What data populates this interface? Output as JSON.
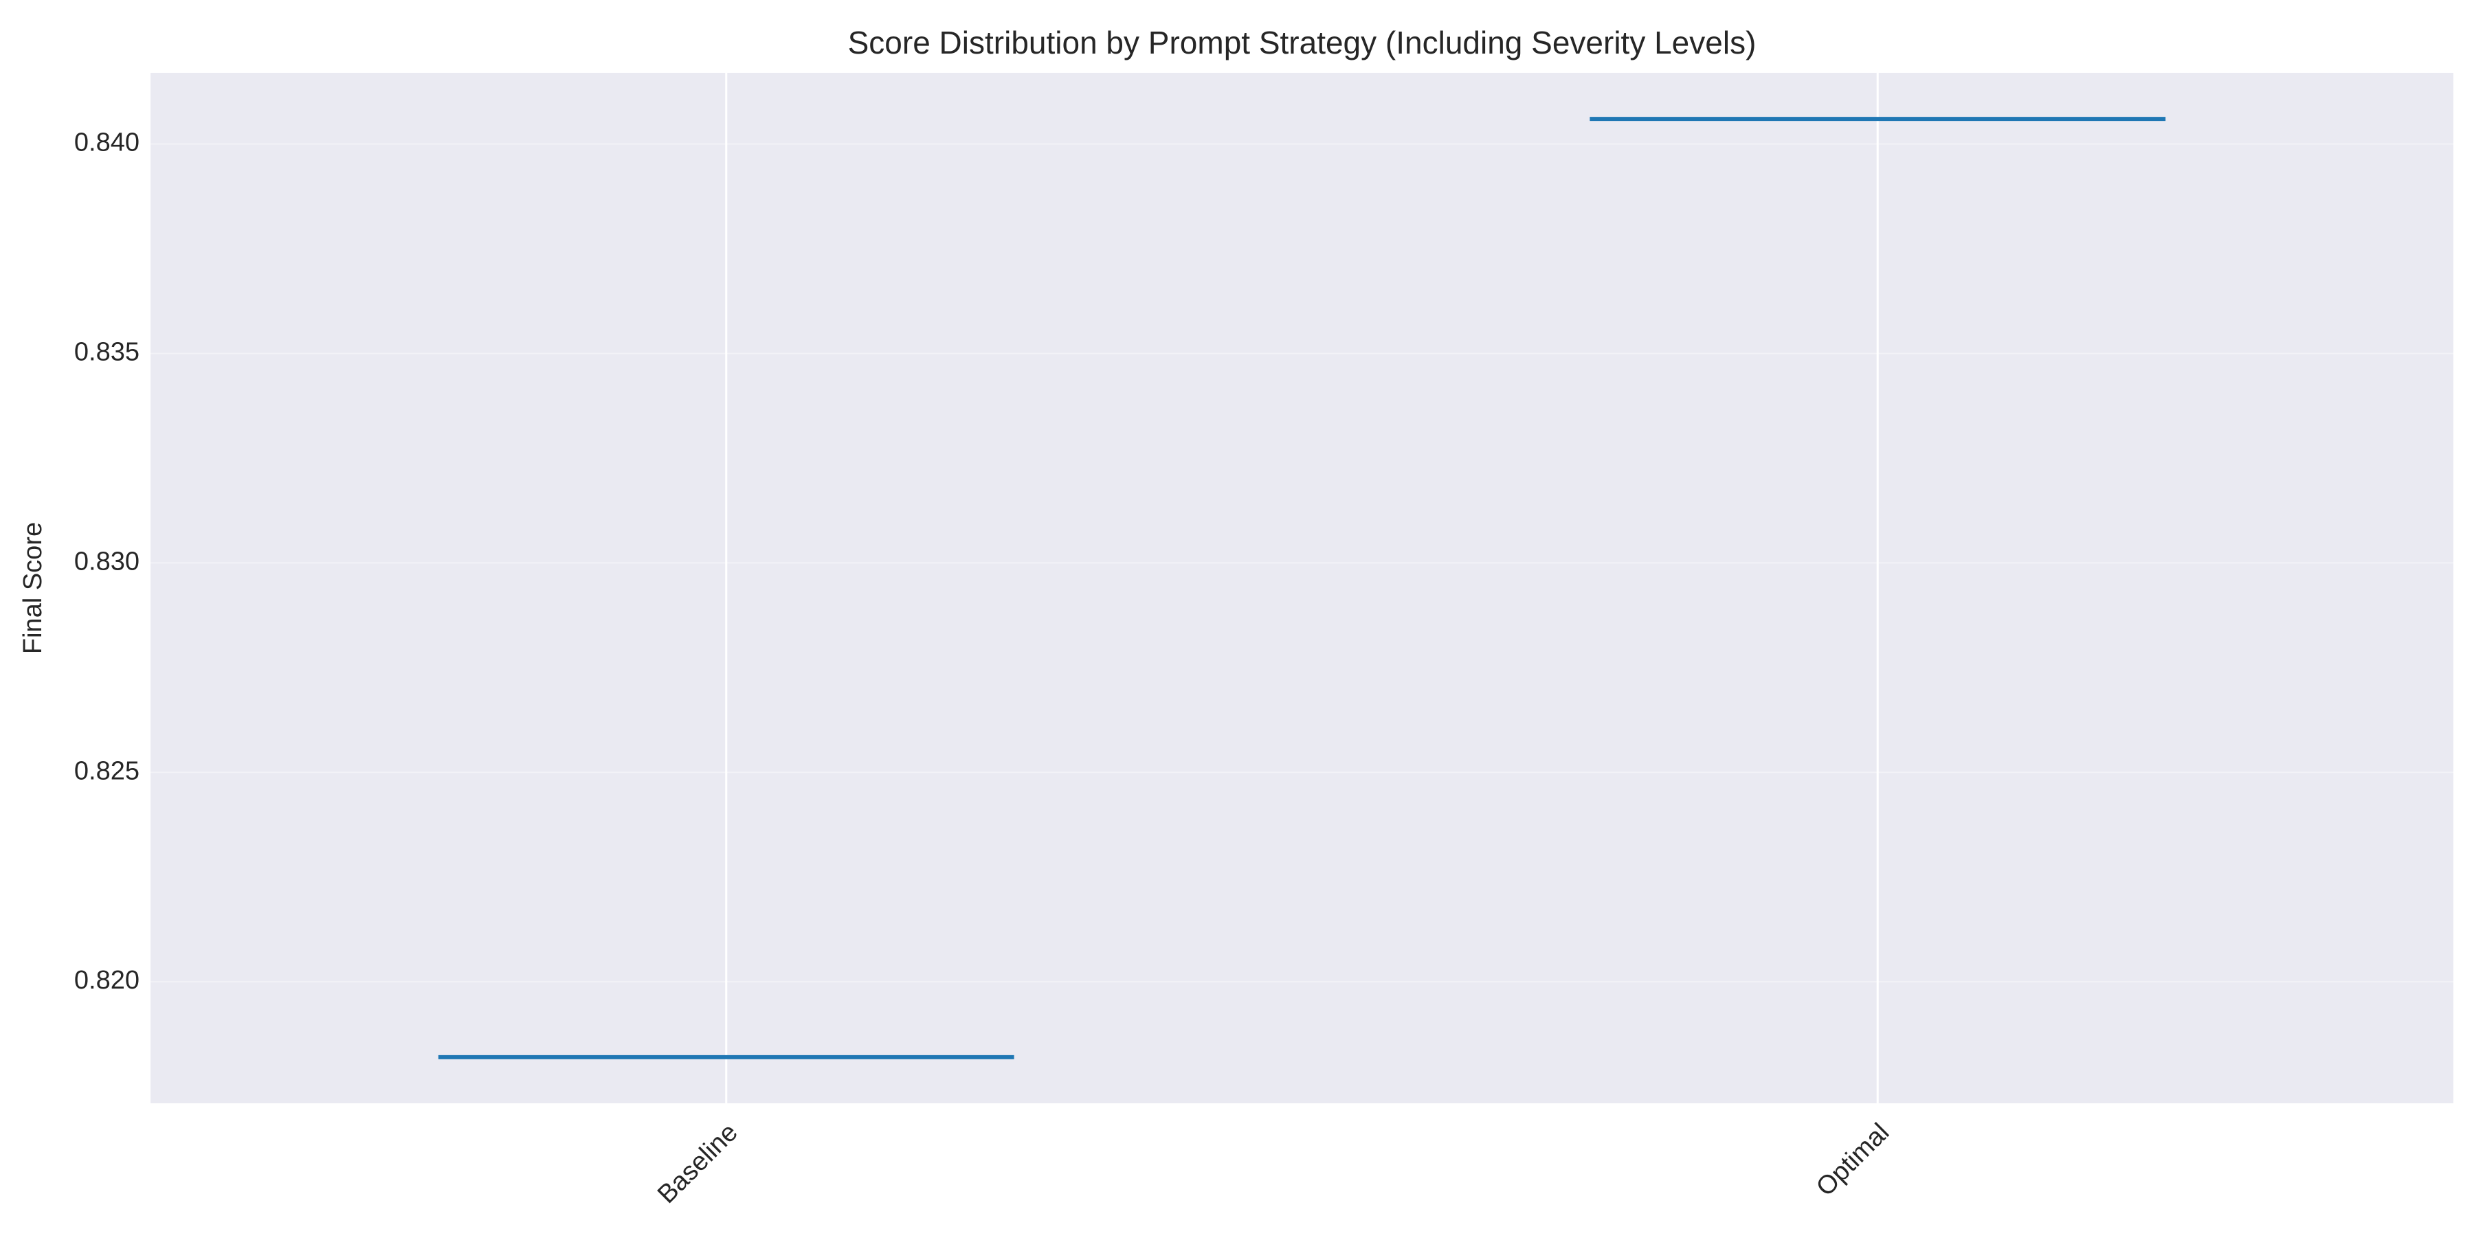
{
  "chart_data": {
    "type": "box",
    "title": "Score Distribution by Prompt Strategy (Including Severity Levels)",
    "xlabel": "",
    "ylabel": "Final Score",
    "categories": [
      "Baseline",
      "Optimal"
    ],
    "values": [
      0.8182,
      0.8406
    ],
    "ylim": [
      0.8171,
      0.8417
    ],
    "yticks": [
      0.82,
      0.825,
      0.83,
      0.835,
      0.84
    ],
    "ytick_labels": [
      "0.820",
      "0.825",
      "0.830",
      "0.835",
      "0.840"
    ],
    "grid": true,
    "xtick_rotation_deg": 45,
    "colors": {
      "plot_background": "#eaeaf2",
      "grid": "#ffffff",
      "median_line": "#1f77b4",
      "text": "#262626"
    }
  }
}
